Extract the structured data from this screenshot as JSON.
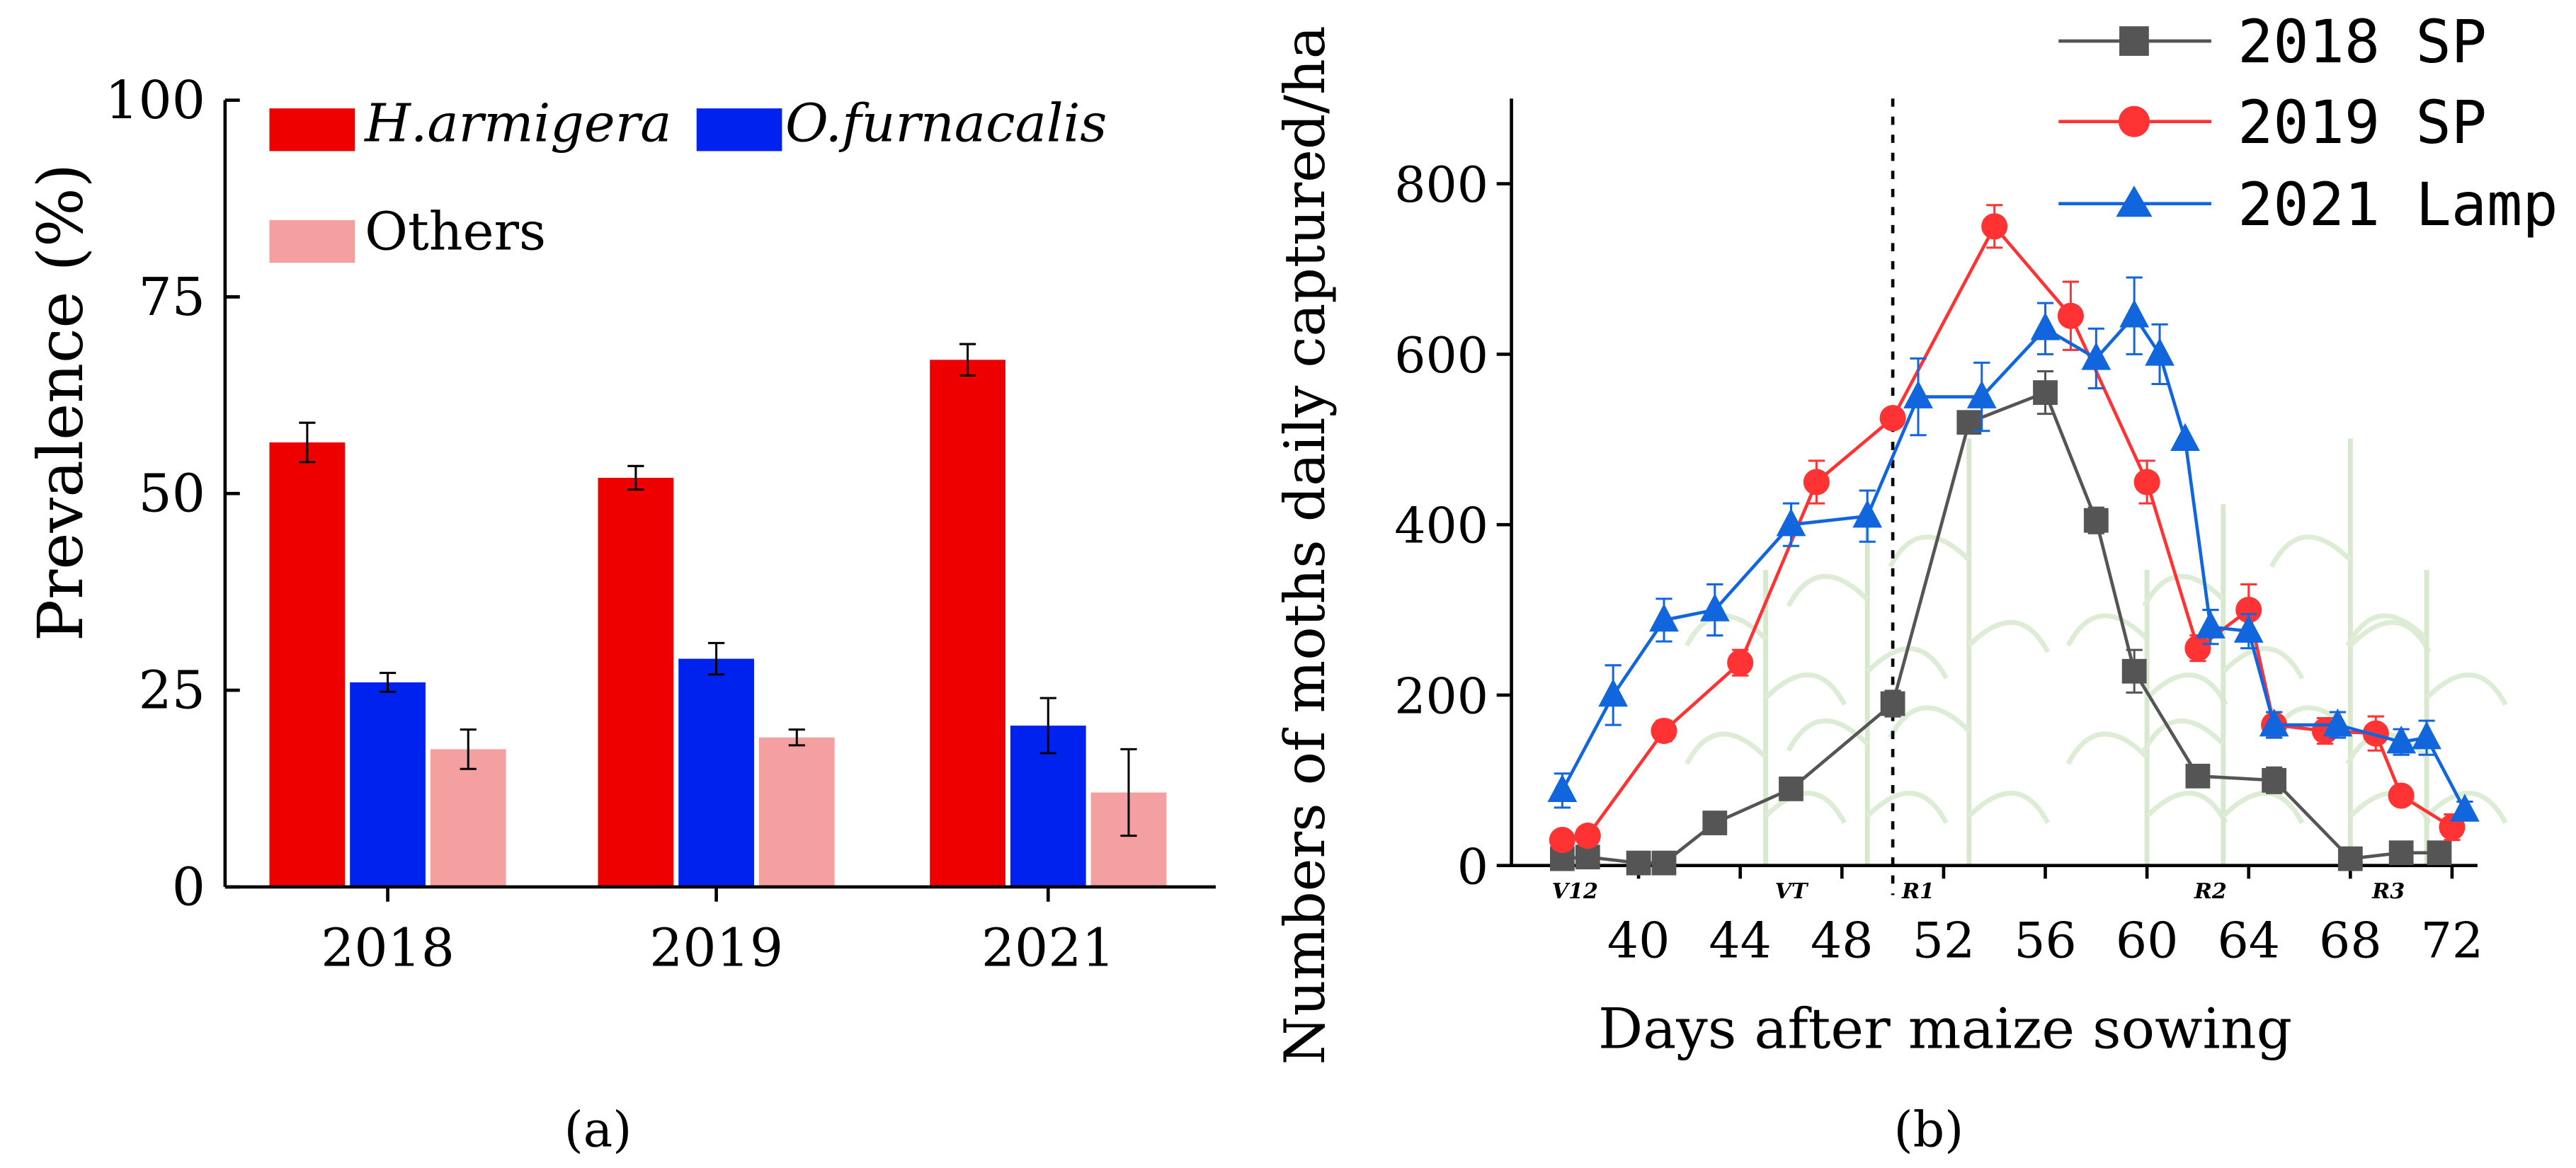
{
  "chart_data": [
    {
      "type": "bar",
      "panel_label": "(a)",
      "ylabel": "Prevalence (%)",
      "xlabel": "",
      "ylim": [
        0,
        100
      ],
      "yticks": [
        0,
        25,
        50,
        75,
        100
      ],
      "categories": [
        "2018",
        "2019",
        "2021"
      ],
      "legend": {
        "position": "top-left"
      },
      "series": [
        {
          "name": "H.armigera",
          "italic": true,
          "color": "#ee0000",
          "values": [
            56.5,
            52,
            67
          ],
          "errors": [
            2.5,
            1.5,
            2.0
          ]
        },
        {
          "name": "O.furnacalis",
          "italic": true,
          "color": "#0022ee",
          "values": [
            26,
            29,
            20.5
          ],
          "errors": [
            1.2,
            2.0,
            3.5
          ]
        },
        {
          "name": "Others",
          "italic": false,
          "color": "#f5a0a0",
          "values": [
            17.5,
            19,
            12
          ],
          "errors": [
            2.5,
            1.0,
            5.5
          ]
        }
      ]
    },
    {
      "type": "line",
      "panel_label": "(b)",
      "ylabel": "Numbers of moths daily captured/ha",
      "xlabel": "Days after maize sowing",
      "xlim": [
        35,
        73
      ],
      "ylim": [
        0,
        900
      ],
      "xticks": [
        40,
        44,
        48,
        52,
        56,
        60,
        64,
        68,
        72
      ],
      "yticks": [
        0,
        200,
        400,
        600,
        800
      ],
      "vline_x": 50,
      "growth_stages": [
        {
          "label": "V12",
          "x": 37.5
        },
        {
          "label": "VT",
          "x": 46
        },
        {
          "label": "R1",
          "x": 51
        },
        {
          "label": "R2",
          "x": 62.5
        },
        {
          "label": "R3",
          "x": 69.5
        }
      ],
      "legend": {
        "position": "top-right"
      },
      "series": [
        {
          "name": "2018 SP",
          "color": "#555555",
          "marker": "square",
          "x": [
            37,
            38,
            40,
            41,
            43,
            46,
            50,
            53,
            56,
            58,
            59.5,
            62,
            65,
            68,
            70,
            71.5
          ],
          "y": [
            8,
            10,
            3,
            3,
            50,
            90,
            190,
            520,
            555,
            405,
            228,
            105,
            100,
            8,
            15,
            15
          ],
          "err": [
            0,
            0,
            0,
            0,
            0,
            0,
            15,
            0,
            25,
            15,
            25,
            10,
            15,
            0,
            8,
            0
          ]
        },
        {
          "name": "2019 SP",
          "color": "#ff3333",
          "marker": "circle",
          "x": [
            37,
            38,
            41,
            44,
            47,
            50,
            54,
            57,
            60,
            62,
            64,
            65,
            67,
            69,
            70,
            72
          ],
          "y": [
            30,
            35,
            158,
            238,
            450,
            525,
            750,
            645,
            450,
            255,
            300,
            165,
            158,
            155,
            82,
            45
          ],
          "err": [
            0,
            0,
            12,
            15,
            25,
            0,
            25,
            40,
            25,
            15,
            30,
            15,
            15,
            20,
            0,
            15
          ]
        },
        {
          "name": "2021 Lamp",
          "color": "#1166dd",
          "marker": "triangle",
          "x": [
            37,
            39,
            41,
            43,
            46,
            49,
            51,
            53.5,
            56,
            58,
            59.5,
            60.5,
            61.5,
            62.5,
            64,
            65,
            67.5,
            70,
            71,
            72.5
          ],
          "y": [
            88,
            200,
            288,
            300,
            400,
            410,
            550,
            550,
            630,
            595,
            645,
            600,
            500,
            280,
            275,
            165,
            165,
            145,
            150,
            65
          ],
          "err": [
            20,
            35,
            25,
            30,
            25,
            30,
            45,
            40,
            30,
            35,
            45,
            35,
            0,
            20,
            20,
            15,
            15,
            15,
            20,
            10
          ]
        }
      ]
    }
  ]
}
